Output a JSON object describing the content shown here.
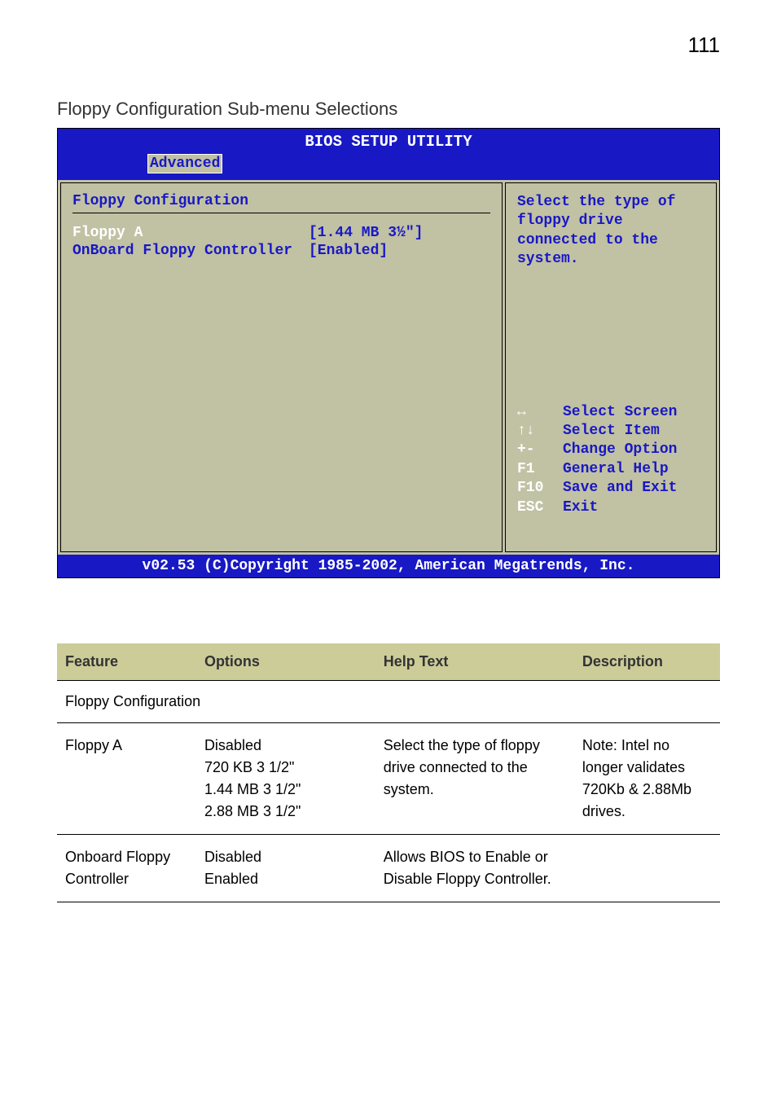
{
  "page_number": "111",
  "section_title": "Floppy Configuration Sub-menu Selections",
  "bios": {
    "title": "BIOS SETUP UTILITY",
    "tab": "Advanced",
    "config_title": "Floppy Configuration",
    "rows": [
      {
        "label": "Floppy A",
        "value": "[1.44 MB 3½\"]",
        "selected": true
      },
      {
        "label": "OnBoard Floppy Controller",
        "value": "[Enabled]",
        "selected": false
      }
    ],
    "help_text": "Select the type of floppy drive connected to the system.",
    "nav": [
      {
        "key": "↔",
        "action": "Select Screen"
      },
      {
        "key": "↑↓",
        "action": "Select Item"
      },
      {
        "key": "+-",
        "action": "Change Option"
      },
      {
        "key": "F1",
        "action": "General Help"
      },
      {
        "key": "F10",
        "action": "Save and Exit"
      },
      {
        "key": "ESC",
        "action": "Exit"
      }
    ],
    "footer": "v02.53 (C)Copyright 1985-2002, American Megatrends, Inc."
  },
  "table": {
    "headers": [
      "Feature",
      "Options",
      "Help Text",
      "Description"
    ],
    "subheader": "Floppy Configuration",
    "rows": [
      {
        "feature": "Floppy A",
        "options": "Disabled\n720 KB 3 1/2\"\n1.44 MB 3 1/2\"\n2.88 MB 3 1/2\"",
        "help": "Select the type of floppy drive connected to the system.",
        "desc": "Note:  Intel no longer validates 720Kb & 2.88Mb drives."
      },
      {
        "feature": "Onboard Floppy Controller",
        "options": "Disabled\nEnabled",
        "help": "Allows BIOS to Enable or Disable Floppy Controller.",
        "desc": ""
      }
    ]
  }
}
